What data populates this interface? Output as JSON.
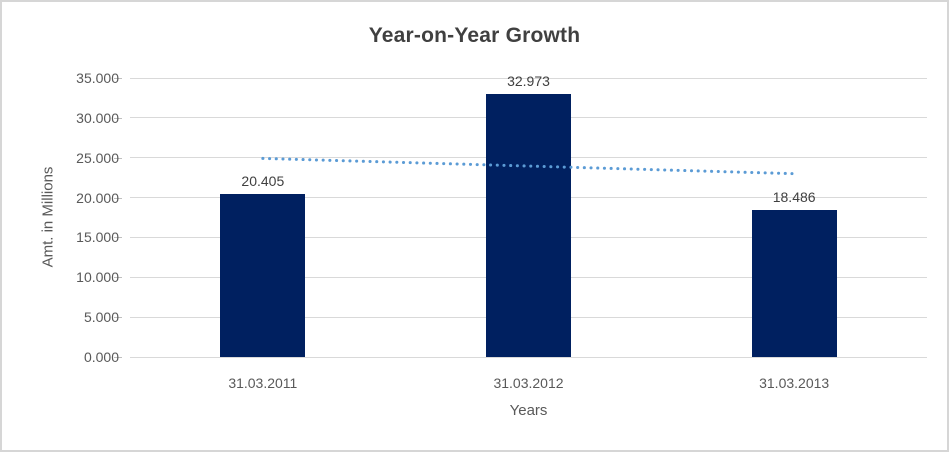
{
  "chart_data": {
    "type": "bar",
    "title": "Year-on-Year Growth",
    "xlabel": "Years",
    "ylabel": "Amt. in Millions",
    "categories": [
      "31.03.2011",
      "31.03.2012",
      "31.03.2013"
    ],
    "values": [
      20405,
      32973,
      18486
    ],
    "data_labels": [
      "20.405",
      "32.973",
      "18.486"
    ],
    "y_ticks": [
      {
        "value": 0,
        "label": "0.000"
      },
      {
        "value": 5000,
        "label": "5.000"
      },
      {
        "value": 10000,
        "label": "10.000"
      },
      {
        "value": 15000,
        "label": "15.000"
      },
      {
        "value": 20000,
        "label": "20.000"
      },
      {
        "value": 25000,
        "label": "25.000"
      },
      {
        "value": 30000,
        "label": "30.000"
      },
      {
        "value": 35000,
        "label": "35.000"
      }
    ],
    "ylim": [
      0,
      35000
    ],
    "grid": true,
    "legend": "none",
    "trendline": {
      "style": "dotted",
      "start_value": 24914,
      "end_value": 22996
    },
    "colors": {
      "bar": "#002060",
      "trendline": "#5b9bd5",
      "gridline": "#d9d9d9",
      "title_text": "#404040",
      "axis_text": "#595959",
      "data_label_text": "#404040",
      "frame_border": "#d6d6d6"
    }
  }
}
